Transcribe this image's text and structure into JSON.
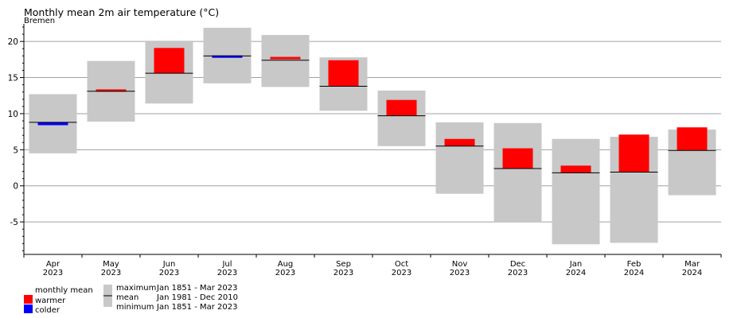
{
  "title": "Monthly mean 2m air temperature (°C)",
  "subtitle": "Bremen",
  "chart_data": {
    "type": "bar",
    "ylim": [
      -9.5,
      22
    ],
    "yticks": [
      -5,
      0,
      5,
      10,
      15,
      20
    ],
    "grid": true,
    "categories": [
      {
        "month": "Apr",
        "year": "2023"
      },
      {
        "month": "May",
        "year": "2023"
      },
      {
        "month": "Jun",
        "year": "2023"
      },
      {
        "month": "Jul",
        "year": "2023"
      },
      {
        "month": "Aug",
        "year": "2023"
      },
      {
        "month": "Sep",
        "year": "2023"
      },
      {
        "month": "Oct",
        "year": "2023"
      },
      {
        "month": "Nov",
        "year": "2023"
      },
      {
        "month": "Dec",
        "year": "2023"
      },
      {
        "month": "Jan",
        "year": "2024"
      },
      {
        "month": "Feb",
        "year": "2024"
      },
      {
        "month": "Mar",
        "year": "2024"
      }
    ],
    "maximum": [
      12.7,
      17.3,
      20.1,
      21.9,
      20.9,
      17.8,
      13.2,
      8.8,
      8.7,
      6.5,
      6.8,
      7.8
    ],
    "minimum": [
      4.5,
      8.9,
      11.4,
      14.2,
      13.7,
      10.4,
      5.5,
      -1.1,
      -5.0,
      -8.1,
      -7.9,
      -1.3
    ],
    "mean": [
      8.8,
      13.1,
      15.6,
      18.0,
      17.4,
      13.8,
      9.7,
      5.5,
      2.4,
      1.8,
      1.9,
      4.9
    ],
    "observed": [
      8.4,
      13.2,
      19.1,
      17.9,
      17.7,
      17.4,
      11.9,
      6.5,
      5.2,
      2.8,
      7.1,
      8.1
    ],
    "colors": {
      "warmer": "#ff0000",
      "colder": "#0000ff",
      "range": "#c8c8c8",
      "mean_line": "#000000",
      "grid": "#a0a0a0"
    }
  },
  "legend": {
    "monthly_mean_label": "monthly mean",
    "warmer_label": "warmer",
    "colder_label": "colder",
    "maximum_label": "maximum",
    "mean_label": "mean",
    "minimum_label": "minimum",
    "maximum_period": "Jan 1851 - Mar 2023",
    "mean_period": "Jan 1981 - Dec 2010",
    "minimum_period": "Jan 1851 - Mar 2023"
  }
}
